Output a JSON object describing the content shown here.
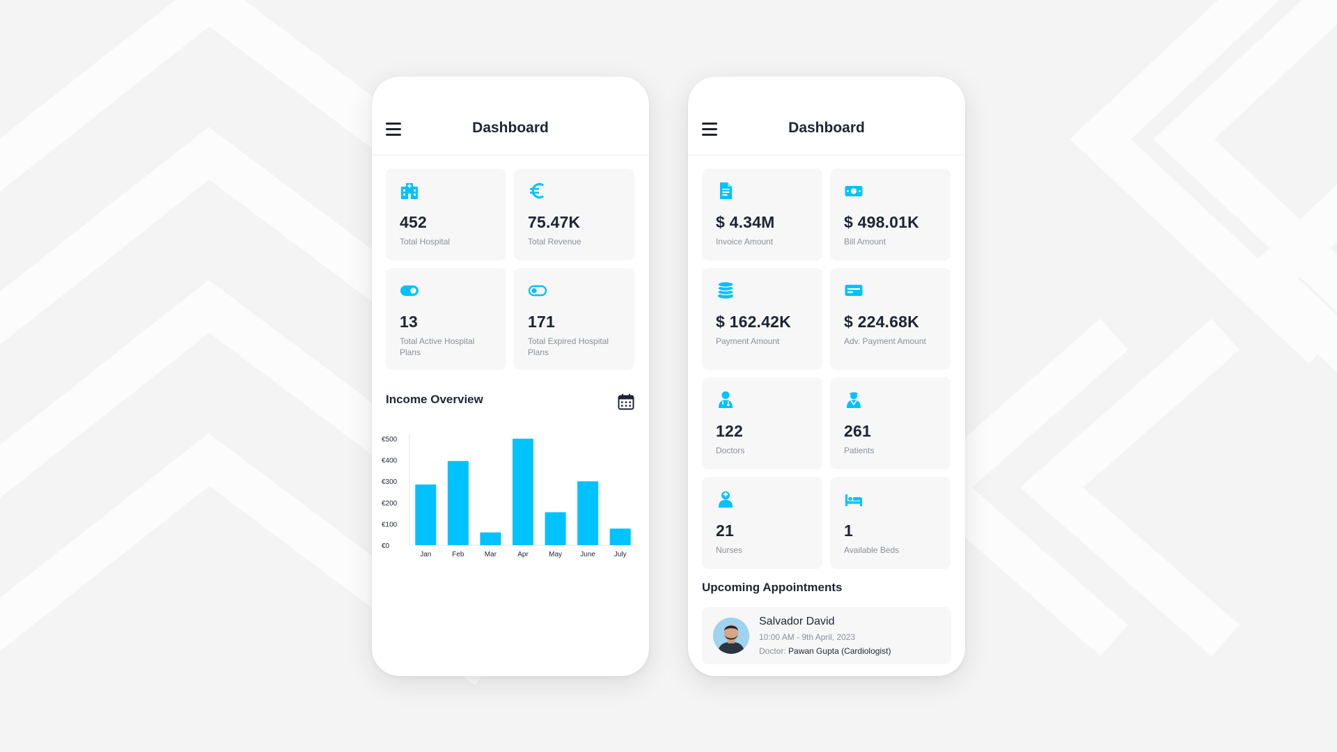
{
  "colors": {
    "accent": "#00c2ff",
    "text_dark": "#1d2433",
    "text_muted": "#8a8f98",
    "card_bg": "#f7f7f8"
  },
  "left_phone": {
    "title": "Dashboard",
    "menu_icon": "hamburger-menu-icon",
    "cards": [
      {
        "icon": "hospital-icon",
        "value": "452",
        "label": "Total Hospital"
      },
      {
        "icon": "euro-icon",
        "value": "75.47K",
        "label": "Total Revenue"
      },
      {
        "icon": "toggle-on-icon",
        "value": "13",
        "label": "Total Active Hospital Plans"
      },
      {
        "icon": "toggle-off-icon",
        "value": "171",
        "label": "Total Expired Hospital Plans"
      }
    ],
    "income_overview": {
      "title": "Income Overview",
      "calendar_icon": "calendar-icon"
    }
  },
  "right_phone": {
    "title": "Dashboard",
    "menu_icon": "hamburger-menu-icon",
    "cards": [
      {
        "icon": "invoice-icon",
        "value": "$ 4.34M",
        "label": "Invoice Amount"
      },
      {
        "icon": "cash-icon",
        "value": "$ 498.01K",
        "label": "Bill Amount"
      },
      {
        "icon": "coins-icon",
        "value": "$ 162.42K",
        "label": "Payment Amount"
      },
      {
        "icon": "card-icon",
        "value": "$ 224.68K",
        "label": "Adv. Payment Amount"
      },
      {
        "icon": "doctor-icon",
        "value": "122",
        "label": "Doctors"
      },
      {
        "icon": "patient-icon",
        "value": "261",
        "label": "Patients"
      },
      {
        "icon": "nurse-icon",
        "value": "21",
        "label": "Nurses"
      },
      {
        "icon": "bed-icon",
        "value": "1",
        "label": "Available Beds"
      }
    ],
    "appointments": {
      "title": "Upcoming Appointments",
      "items": [
        {
          "name": "Salvador David",
          "time": "10:00 AM - 9th April, 2023",
          "doctor_label": "Doctor:",
          "doctor": "Pawan Gupta (Cardiologist)"
        }
      ]
    }
  },
  "chart_data": {
    "type": "bar",
    "title": "Income Overview",
    "categories": [
      "Jan",
      "Feb",
      "Mar",
      "Apr",
      "May",
      "June",
      "July"
    ],
    "values": [
      285,
      395,
      60,
      500,
      155,
      300,
      78
    ],
    "yticks": [
      "€0",
      "€100",
      "€200",
      "€300",
      "€400",
      "€500"
    ],
    "ylim": [
      0,
      500
    ],
    "grid": false,
    "color": "#00c2ff"
  }
}
